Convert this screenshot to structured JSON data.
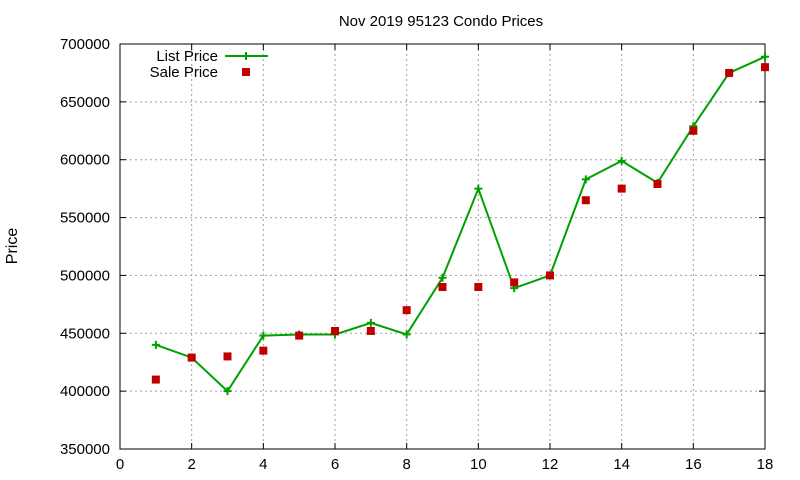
{
  "chart_data": {
    "type": "line",
    "title": "Nov 2019 95123 Condo Prices",
    "xlabel": "",
    "ylabel": "Price",
    "xlim": [
      0,
      18
    ],
    "ylim": [
      350000,
      700000
    ],
    "xticks": [
      "0",
      "2",
      "4",
      "6",
      "8",
      "10",
      "12",
      "14",
      "16",
      "18"
    ],
    "yticks": [
      "350000",
      "400000",
      "450000",
      "500000",
      "550000",
      "600000",
      "650000",
      "700000"
    ],
    "grid": true,
    "legend_position": "top-left",
    "series": [
      {
        "name": "List Price",
        "style": "line-plus",
        "color": "#00a000",
        "x": [
          1,
          2,
          3,
          4,
          5,
          6,
          7,
          8,
          9,
          10,
          11,
          12,
          13,
          14,
          15,
          16,
          17,
          18
        ],
        "y": [
          440000,
          429000,
          400000,
          448000,
          449000,
          449000,
          459000,
          449000,
          498000,
          575000,
          489000,
          500000,
          583000,
          599000,
          580000,
          629000,
          675000,
          689000
        ]
      },
      {
        "name": "Sale Price",
        "style": "square",
        "color": "#c00000",
        "x": [
          1,
          2,
          3,
          4,
          5,
          6,
          7,
          8,
          9,
          10,
          11,
          12,
          13,
          14,
          15,
          16,
          17,
          18
        ],
        "y": [
          410000,
          429000,
          430000,
          435000,
          448000,
          452000,
          452000,
          470000,
          490000,
          490000,
          494000,
          500000,
          565000,
          575000,
          579000,
          625000,
          675000,
          680000
        ]
      }
    ]
  }
}
